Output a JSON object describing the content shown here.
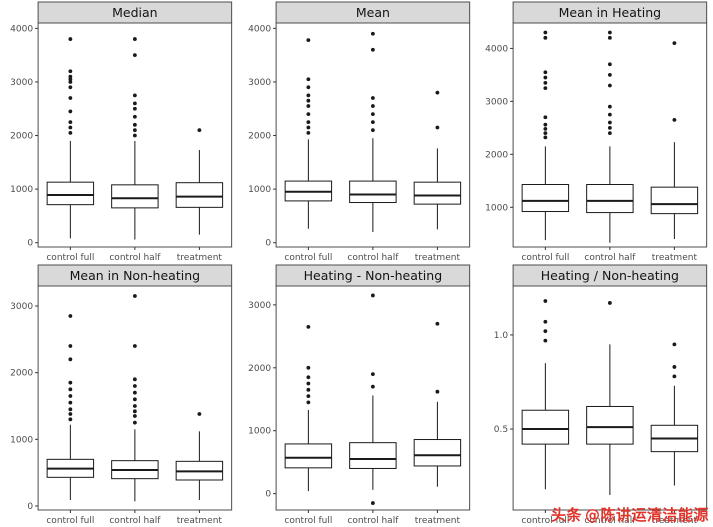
{
  "watermark": {
    "brand": "头条",
    "handle": "@陈讲运清洁能源",
    "color": "#e0342b"
  },
  "style": {
    "strip_fill": "#d9d9d9",
    "border_color": "#4d4d4d",
    "box_stroke": "#1a1a1a",
    "outlier_color": "#1a1a1a",
    "axis_text_color": "#4d4d4d"
  },
  "chart_data": [
    {
      "type": "boxplot",
      "title": "Median",
      "categories": [
        "control full",
        "control half",
        "treatment"
      ],
      "ylim": [
        -80,
        4100
      ],
      "yticks": [
        0,
        1000,
        2000,
        3000,
        4000
      ],
      "ytick_labels": [
        "0",
        "1000",
        "2000",
        "3000",
        "4000"
      ],
      "series": [
        {
          "category": "control full",
          "whisker_low": 80,
          "q1": 710,
          "median": 890,
          "q3": 1130,
          "whisker_high": 1900,
          "outliers": [
            2050,
            2150,
            2250,
            2450,
            2700,
            2900,
            3000,
            3050,
            3100,
            3200,
            3800
          ]
        },
        {
          "category": "control half",
          "whisker_low": 60,
          "q1": 650,
          "median": 830,
          "q3": 1080,
          "whisker_high": 1900,
          "outliers": [
            2000,
            2100,
            2200,
            2350,
            2500,
            2600,
            2750,
            3500,
            3800
          ]
        },
        {
          "category": "treatment",
          "whisker_low": 150,
          "q1": 660,
          "median": 860,
          "q3": 1120,
          "whisker_high": 1730,
          "outliers": [
            2100
          ]
        }
      ]
    },
    {
      "type": "boxplot",
      "title": "Mean",
      "categories": [
        "control full",
        "control half",
        "treatment"
      ],
      "ylim": [
        -80,
        4100
      ],
      "yticks": [
        0,
        1000,
        2000,
        3000,
        4000
      ],
      "ytick_labels": [
        "0",
        "1000",
        "2000",
        "3000",
        "4000"
      ],
      "series": [
        {
          "category": "control full",
          "whisker_low": 260,
          "q1": 780,
          "median": 950,
          "q3": 1150,
          "whisker_high": 1930,
          "outliers": [
            2050,
            2150,
            2250,
            2400,
            2550,
            2650,
            2750,
            2900,
            3050,
            3780
          ]
        },
        {
          "category": "control half",
          "whisker_low": 200,
          "q1": 750,
          "median": 900,
          "q3": 1150,
          "whisker_high": 1950,
          "outliers": [
            2100,
            2250,
            2400,
            2550,
            2700,
            3600,
            3900
          ]
        },
        {
          "category": "treatment",
          "whisker_low": 250,
          "q1": 720,
          "median": 880,
          "q3": 1130,
          "whisker_high": 1760,
          "outliers": [
            2150,
            2800
          ]
        }
      ]
    },
    {
      "type": "boxplot",
      "title": "Mean in Heating",
      "categories": [
        "control full",
        "control half",
        "treatment"
      ],
      "ylim": [
        250,
        4480
      ],
      "yticks": [
        1000,
        2000,
        3000,
        4000
      ],
      "ytick_labels": [
        "1000",
        "2000",
        "3000",
        "4000"
      ],
      "series": [
        {
          "category": "control full",
          "whisker_low": 380,
          "q1": 920,
          "median": 1120,
          "q3": 1430,
          "whisker_high": 2150,
          "outliers": [
            2320,
            2400,
            2480,
            2560,
            2700,
            3250,
            3350,
            3450,
            3550,
            4200,
            4300
          ]
        },
        {
          "category": "control half",
          "whisker_low": 330,
          "q1": 900,
          "median": 1120,
          "q3": 1430,
          "whisker_high": 2150,
          "outliers": [
            2400,
            2500,
            2600,
            2750,
            2900,
            3300,
            3500,
            3700,
            4200,
            4300
          ]
        },
        {
          "category": "treatment",
          "whisker_low": 400,
          "q1": 880,
          "median": 1060,
          "q3": 1380,
          "whisker_high": 2230,
          "outliers": [
            2650,
            4100
          ]
        }
      ]
    },
    {
      "type": "boxplot",
      "title": "Mean in Non-heating",
      "categories": [
        "control full",
        "control half",
        "treatment"
      ],
      "ylim": [
        -60,
        3300
      ],
      "yticks": [
        0,
        1000,
        2000,
        3000
      ],
      "ytick_labels": [
        "0",
        "1000",
        "2000",
        "3000"
      ],
      "series": [
        {
          "category": "control full",
          "whisker_low": 90,
          "q1": 430,
          "median": 560,
          "q3": 700,
          "whisker_high": 1220,
          "outliers": [
            1300,
            1380,
            1450,
            1550,
            1650,
            1750,
            1850,
            2200,
            2400,
            2850
          ]
        },
        {
          "category": "control half",
          "whisker_low": 70,
          "q1": 410,
          "median": 540,
          "q3": 680,
          "whisker_high": 1150,
          "outliers": [
            1250,
            1350,
            1420,
            1500,
            1600,
            1700,
            1800,
            1900,
            2400,
            3150
          ]
        },
        {
          "category": "treatment",
          "whisker_low": 90,
          "q1": 390,
          "median": 520,
          "q3": 670,
          "whisker_high": 1120,
          "outliers": [
            1380
          ]
        }
      ]
    },
    {
      "type": "boxplot",
      "title": "Heating - Non-heating",
      "categories": [
        "control full",
        "control half",
        "treatment"
      ],
      "ylim": [
        -260,
        3300
      ],
      "yticks": [
        0,
        1000,
        2000,
        3000
      ],
      "ytick_labels": [
        "0",
        "1000",
        "2000",
        "3000"
      ],
      "series": [
        {
          "category": "control full",
          "whisker_low": 40,
          "q1": 410,
          "median": 570,
          "q3": 790,
          "whisker_high": 1330,
          "outliers": [
            1450,
            1550,
            1650,
            1750,
            1850,
            2000,
            2650
          ]
        },
        {
          "category": "control half",
          "whisker_low": 60,
          "q1": 400,
          "median": 550,
          "q3": 810,
          "whisker_high": 1560,
          "outliers": [
            -150,
            1700,
            1900,
            3150
          ]
        },
        {
          "category": "treatment",
          "whisker_low": 110,
          "q1": 440,
          "median": 610,
          "q3": 860,
          "whisker_high": 1460,
          "outliers": [
            1620,
            2700
          ]
        }
      ]
    },
    {
      "type": "boxplot",
      "title": "Heating / Non-heating",
      "categories": [
        "control full",
        "control half",
        "treatment"
      ],
      "ylim": [
        0.07,
        1.26
      ],
      "yticks": [
        0.5,
        1.0
      ],
      "ytick_labels": [
        "0.5",
        "1.0"
      ],
      "series": [
        {
          "category": "control full",
          "whisker_low": 0.18,
          "q1": 0.42,
          "median": 0.5,
          "q3": 0.6,
          "whisker_high": 0.85,
          "outliers": [
            0.97,
            1.02,
            1.07,
            1.18
          ]
        },
        {
          "category": "control half",
          "whisker_low": 0.15,
          "q1": 0.42,
          "median": 0.51,
          "q3": 0.62,
          "whisker_high": 0.95,
          "outliers": [
            1.17
          ]
        },
        {
          "category": "treatment",
          "whisker_low": 0.2,
          "q1": 0.38,
          "median": 0.45,
          "q3": 0.52,
          "whisker_high": 0.73,
          "outliers": [
            0.78,
            0.83,
            0.95
          ]
        }
      ]
    }
  ]
}
